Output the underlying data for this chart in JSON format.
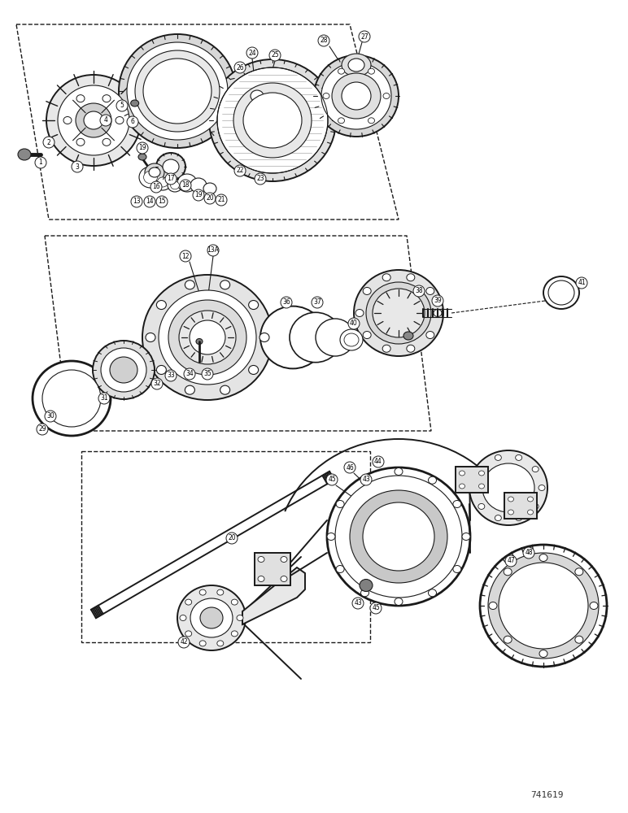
{
  "background_color": "#ffffff",
  "line_color": "#1a1a1a",
  "part_number_text": "741619",
  "fig_width": 7.72,
  "fig_height": 10.0,
  "dpi": 100
}
